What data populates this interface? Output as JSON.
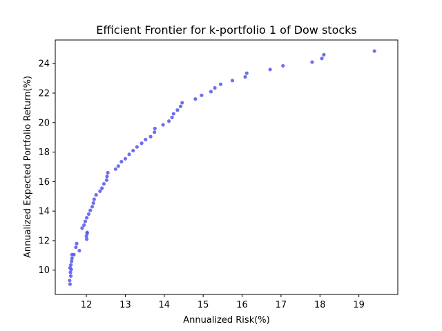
{
  "chart_data": {
    "type": "scatter",
    "title": "Efficient Frontier for k-portfolio 1 of Dow stocks",
    "xlabel": "Annualized Risk(%)",
    "ylabel": "Annualized Expected Portfolio Return(%)",
    "xlim": [
      11.2,
      20.0
    ],
    "ylim": [
      8.35,
      25.6
    ],
    "xticks": [
      12,
      13,
      14,
      15,
      16,
      17,
      18,
      19
    ],
    "yticks": [
      10,
      12,
      14,
      16,
      18,
      20,
      22,
      24
    ],
    "grid": false,
    "marker_color": "#5555ee",
    "series": [
      {
        "x": [
          11.58,
          11.57,
          11.6,
          11.59,
          11.61,
          11.58,
          11.6,
          11.62,
          11.63,
          11.63,
          11.68,
          11.82,
          11.73,
          11.75,
          12.01,
          12.0,
          12.02,
          12.02,
          11.89,
          11.94,
          11.97,
          12.01,
          12.06,
          12.1,
          12.15,
          12.18,
          12.2,
          12.25,
          12.35,
          12.4,
          12.45,
          12.52,
          12.53,
          12.55,
          12.75,
          12.82,
          12.9,
          13.0,
          13.1,
          13.2,
          13.3,
          13.42,
          13.52,
          13.65,
          13.75,
          13.76,
          13.97,
          14.12,
          14.2,
          14.24,
          14.34,
          14.42,
          14.46,
          14.8,
          14.96,
          15.2,
          15.3,
          15.45,
          15.75,
          16.08,
          16.12,
          16.72,
          17.05,
          17.8,
          18.05,
          18.1,
          19.4
        ],
        "y": [
          9.05,
          9.3,
          9.6,
          9.85,
          10.05,
          10.15,
          10.35,
          10.6,
          10.8,
          11.05,
          11.05,
          11.32,
          11.55,
          11.8,
          12.1,
          12.3,
          12.5,
          12.55,
          12.85,
          13.05,
          13.3,
          13.55,
          13.8,
          14.05,
          14.3,
          14.55,
          14.8,
          15.1,
          15.35,
          15.55,
          15.85,
          16.1,
          16.35,
          16.6,
          16.85,
          17.05,
          17.35,
          17.55,
          17.85,
          18.1,
          18.35,
          18.6,
          18.85,
          19.05,
          19.35,
          19.6,
          19.85,
          20.1,
          20.35,
          20.6,
          20.85,
          21.1,
          21.35,
          21.6,
          21.85,
          22.1,
          22.35,
          22.6,
          22.85,
          23.1,
          23.35,
          23.6,
          23.85,
          24.1,
          24.35,
          24.6,
          24.85
        ]
      }
    ]
  }
}
